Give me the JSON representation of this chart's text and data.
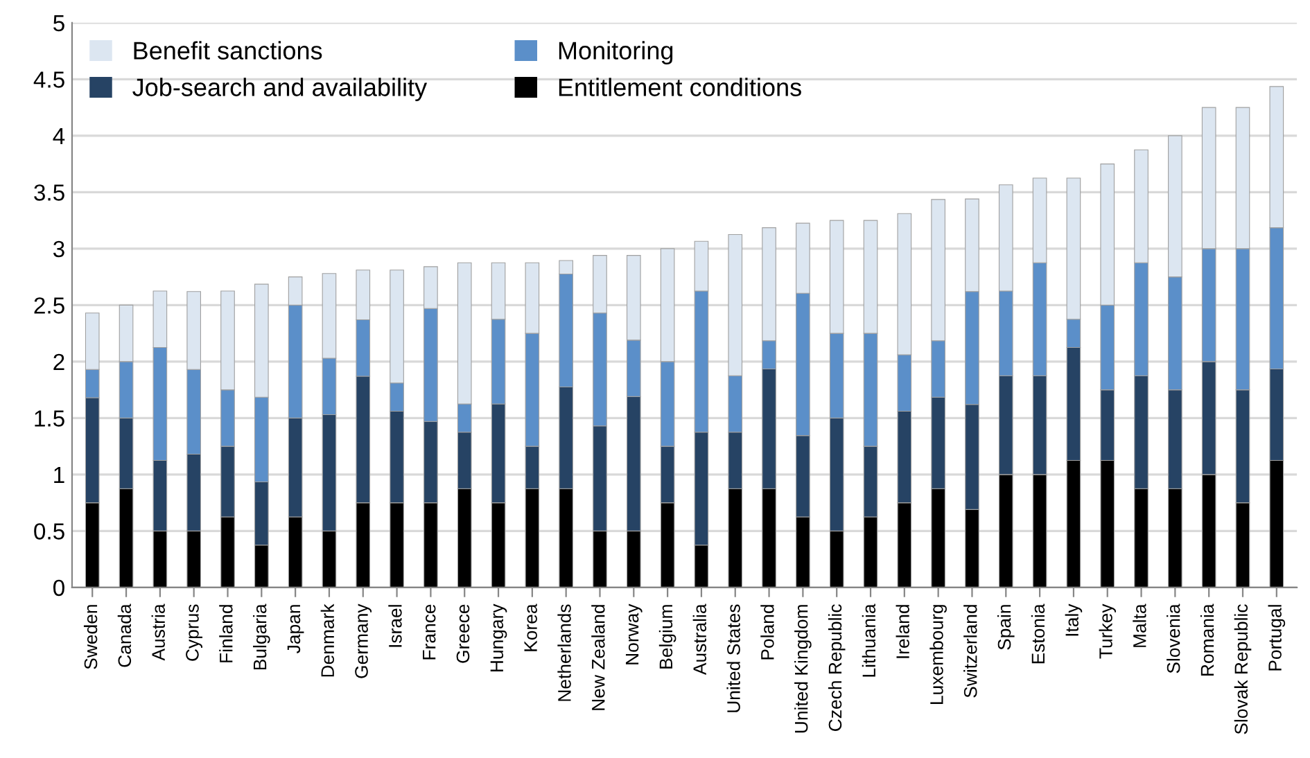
{
  "chart_data": {
    "type": "bar",
    "stacked": true,
    "categories": [
      "Sweden",
      "Canada",
      "Austria",
      "Cyprus",
      "Finland",
      "Bulgaria",
      "Japan",
      "Denmark",
      "Germany",
      "Israel",
      "France",
      "Greece",
      "Hungary",
      "Korea",
      "Netherlands",
      "New Zealand",
      "Norway",
      "Belgium",
      "Australia",
      "United States",
      "Poland",
      "United Kingdom",
      "Czech Republic",
      "Lithuania",
      "Ireland",
      "Luxembourg",
      "Switzerland",
      "Spain",
      "Estonia",
      "Italy",
      "Turkey",
      "Malta",
      "Slovenia",
      "Romania",
      "Slovak Republic",
      "Portugal"
    ],
    "series": [
      {
        "name": "Entitlement conditions",
        "color": "#000000",
        "values": [
          0.75,
          0.875,
          0.5,
          0.5,
          0.625,
          0.375,
          0.625,
          0.5,
          0.75,
          0.75,
          0.75,
          0.875,
          0.75,
          0.875,
          0.875,
          0.5,
          0.5,
          0.75,
          0.375,
          0.875,
          0.875,
          0.625,
          0.5,
          0.625,
          0.75,
          0.875,
          0.69,
          1,
          1,
          1.125,
          1.125,
          0.875,
          0.875,
          1,
          0.75,
          1.125
        ]
      },
      {
        "name": "Job-search and availability",
        "color": "#264364",
        "values": [
          0.93,
          0.625,
          0.625,
          0.68,
          0.625,
          0.56,
          0.875,
          1.03,
          1.12,
          0.81,
          0.72,
          0.5,
          0.875,
          0.375,
          0.9,
          0.93,
          1.19,
          0.5,
          1,
          0.5,
          1.06,
          0.72,
          1,
          0.625,
          0.81,
          0.81,
          0.93,
          0.875,
          0.875,
          1,
          0.625,
          1,
          0.875,
          1,
          1,
          0.81
        ]
      },
      {
        "name": "Monitoring",
        "color": "#5b8fc9",
        "values": [
          0.25,
          0.5,
          1,
          0.75,
          0.5,
          0.75,
          1,
          0.5,
          0.5,
          0.25,
          1,
          0.25,
          0.75,
          1,
          1,
          1,
          0.5,
          0.75,
          1.25,
          0.5,
          0.25,
          1.26,
          0.75,
          1,
          0.5,
          0.5,
          1,
          0.75,
          1,
          0.25,
          0.75,
          1,
          1,
          1,
          1.25,
          1.25
        ]
      },
      {
        "name": "Benefit sanctions",
        "color": "#dce6f1",
        "values": [
          0.5,
          0.5,
          0.5,
          0.69,
          0.875,
          1,
          0.25,
          0.75,
          0.44,
          1,
          0.37,
          1.25,
          0.5,
          0.625,
          0.12,
          0.51,
          0.75,
          1,
          0.44,
          1.25,
          1,
          0.62,
          1,
          1,
          1.25,
          1.25,
          0.82,
          0.94,
          0.75,
          1.25,
          1.25,
          1,
          1.25,
          1.25,
          1.25,
          1.25
        ]
      }
    ],
    "ylim": [
      0,
      5
    ],
    "yticks": [
      0,
      0.5,
      1,
      1.5,
      2,
      2.5,
      3,
      3.5,
      4,
      4.5,
      5
    ],
    "grid": "y",
    "legend": "top left"
  }
}
